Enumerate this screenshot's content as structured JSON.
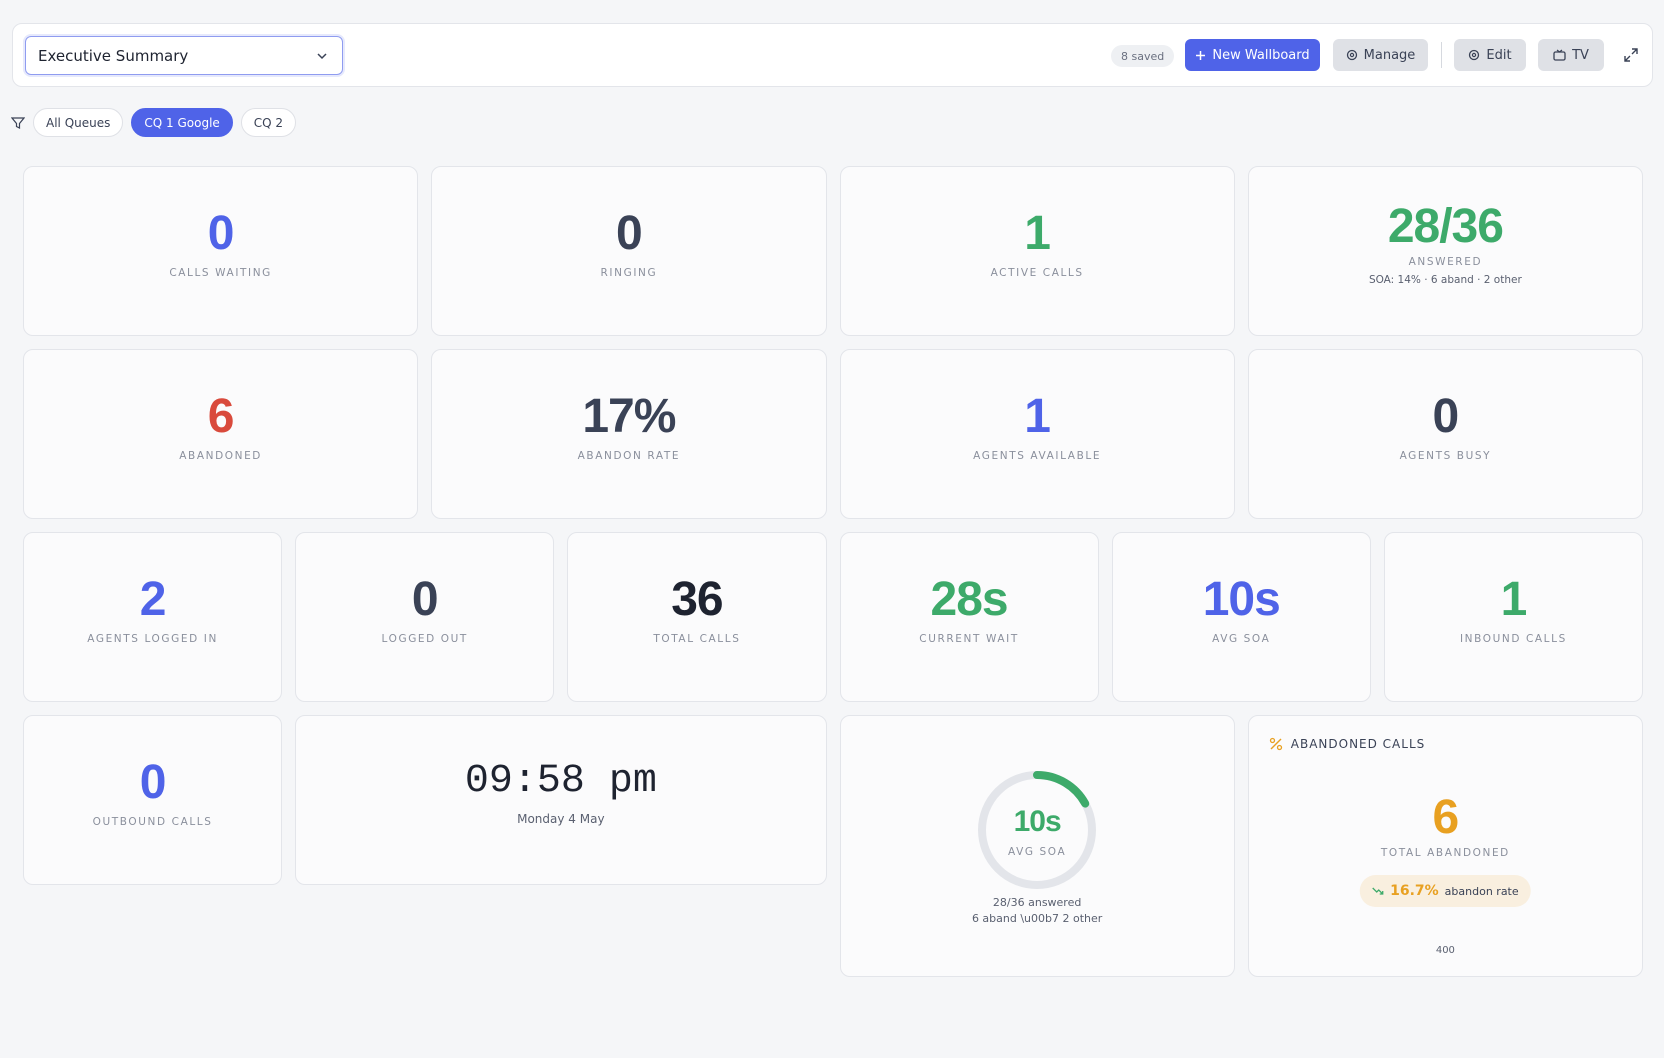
{
  "toolbar": {
    "selected_wallboard": "Executive Summary",
    "saved_badge": "8 saved",
    "buttons": [
      "New Wallboard",
      "Manage",
      "Edit",
      "TV"
    ]
  },
  "filters": [
    "All Queues",
    "CQ 1 Google",
    "CQ 2"
  ],
  "tiles": [
    {
      "value": "0",
      "label": "CALLS WAITING"
    },
    {
      "value": "0",
      "label": "RINGING"
    },
    {
      "value": "1",
      "label": "ACTIVE CALLS"
    },
    {
      "value": "28/36",
      "label": "ANSWERED",
      "sub": "SOA: 14% · 6 aband · 2 other"
    },
    {
      "value": "6",
      "label": "ABANDONED"
    },
    {
      "value": "17%",
      "label": "ABANDON RATE"
    },
    {
      "value": "1",
      "label": "AGENTS AVAILABLE"
    },
    {
      "value": "0",
      "label": "AGENTS BUSY"
    },
    {
      "value": "2",
      "label": "AGENTS LOGGED IN"
    },
    {
      "value": "0",
      "label": "LOGGED OUT"
    },
    {
      "value": "36",
      "label": "TOTAL CALLS"
    },
    {
      "value": "28s",
      "label": "CURRENT WAIT"
    },
    {
      "value": "10s",
      "label": "AVG SOA"
    },
    {
      "value": "1",
      "label": "INBOUND CALLS"
    },
    {
      "value": "0",
      "label": "OUTBOUND CALLS"
    }
  ],
  "clock": {
    "time": "09:58 pm",
    "date": "Monday 4 May"
  },
  "gauge": {
    "value": "10s",
    "label": "AVG SOA",
    "percent": 17,
    "line1": "28/36 answered",
    "line2": "6 aband \\u00b7 2 other"
  },
  "abandoned_panel": {
    "title": "ABANDONED CALLS",
    "value": "6",
    "label": "TOTAL ABANDONED",
    "rate": "16.7%",
    "rate_label": "abandon rate",
    "footer": "400"
  }
}
